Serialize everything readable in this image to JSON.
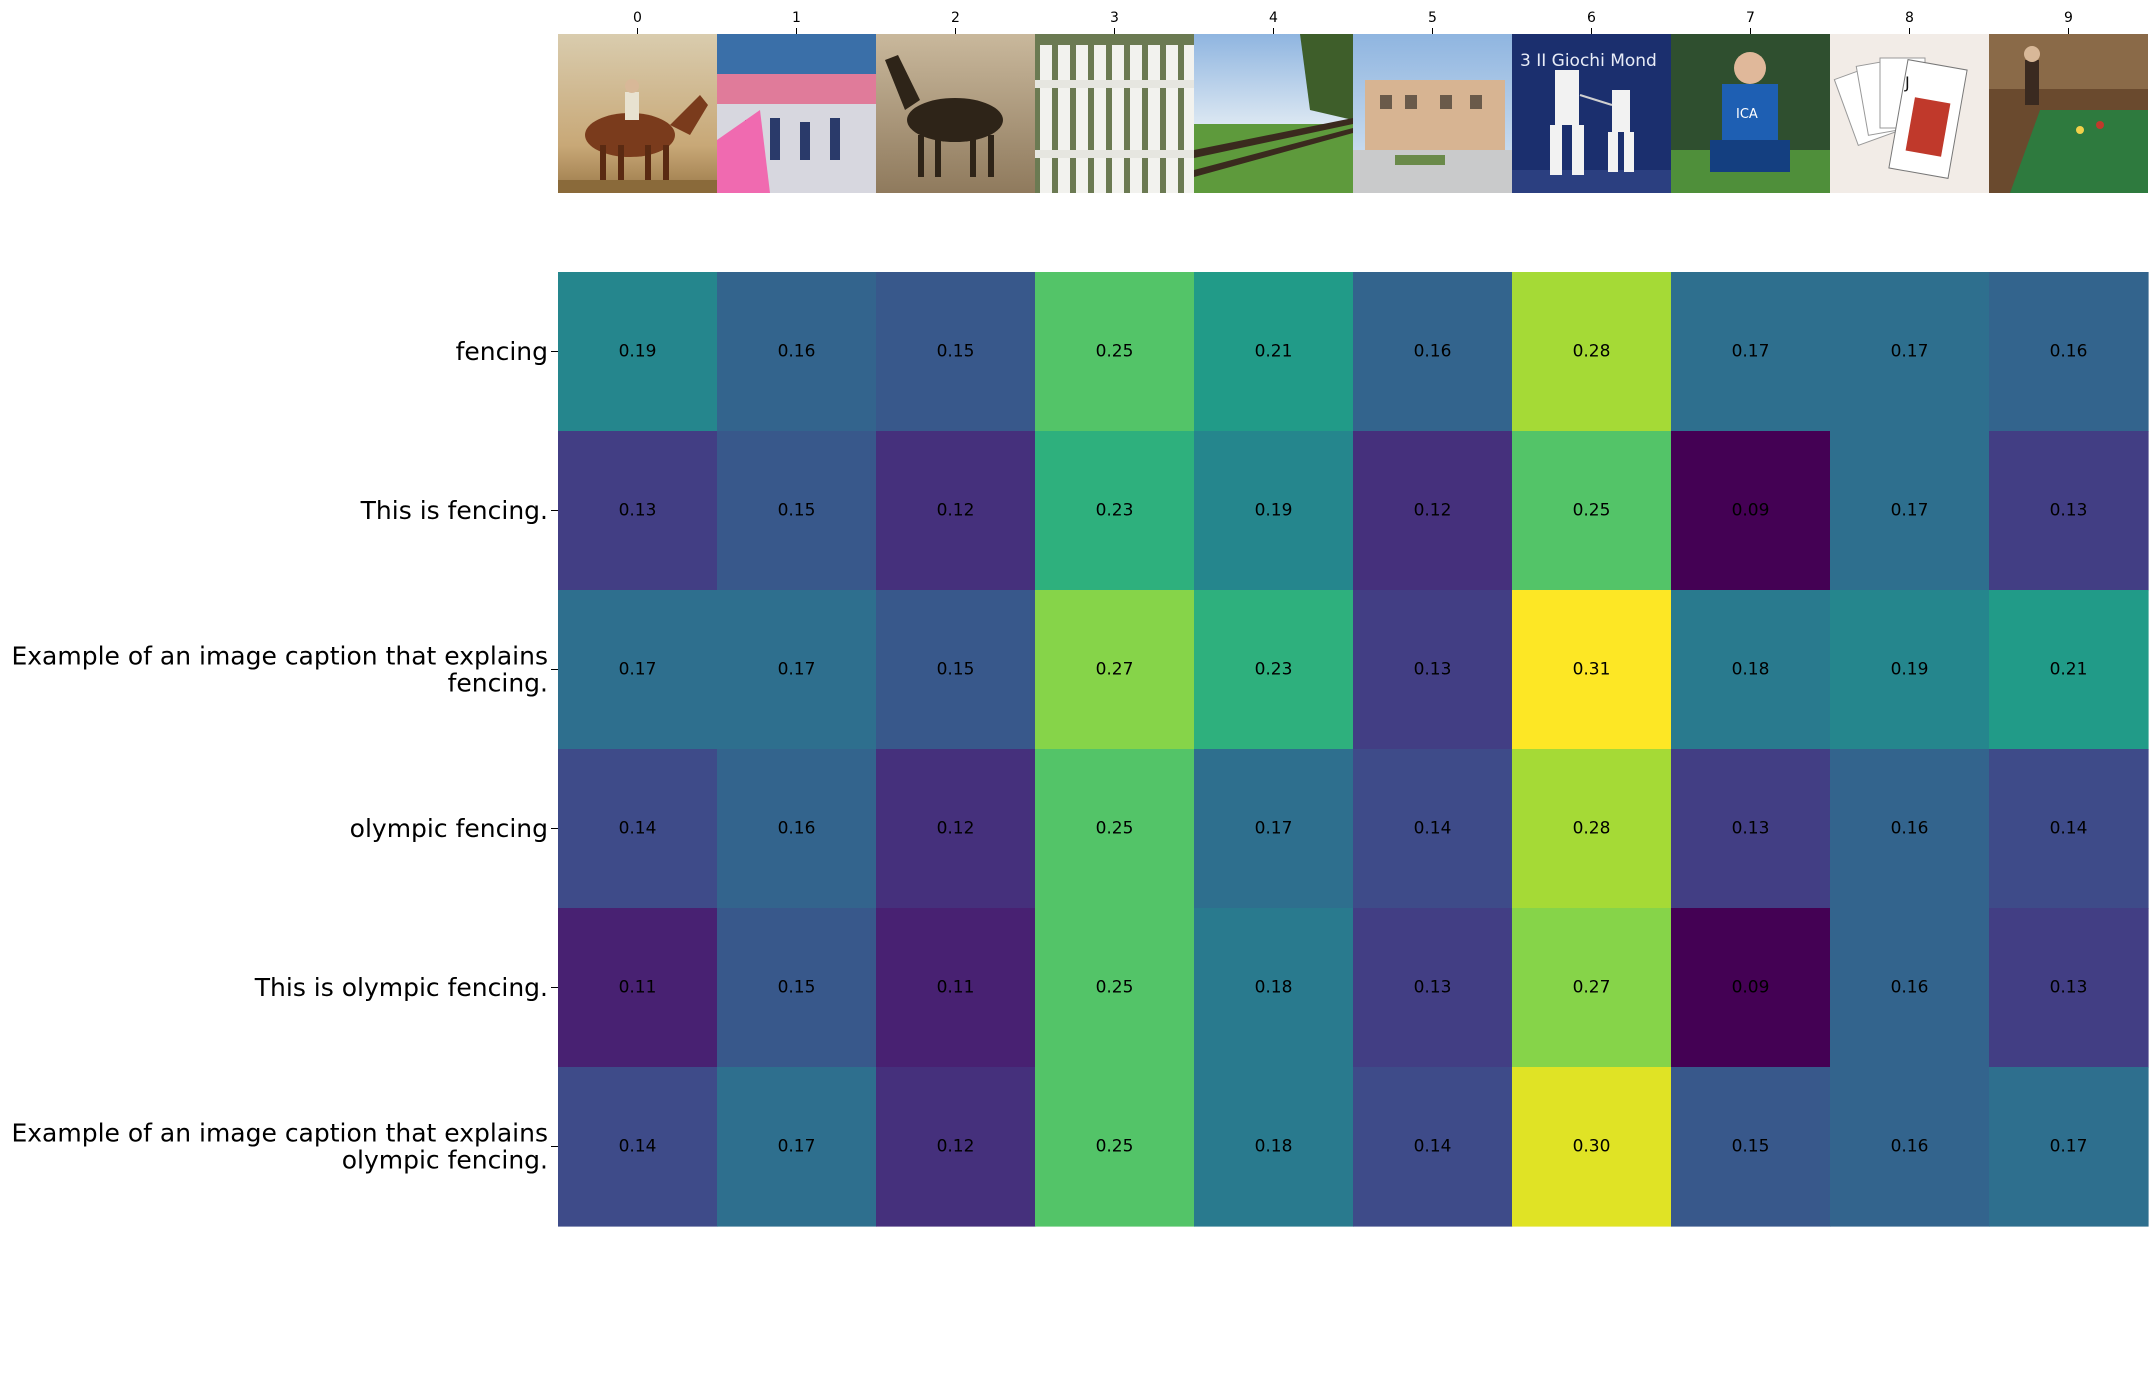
{
  "chart_data": {
    "type": "heatmap",
    "title": "",
    "xlabel": "",
    "ylabel": "",
    "colormap": "viridis",
    "value_range": [
      0.09,
      0.31
    ],
    "x_tick_labels": [
      "0",
      "1",
      "2",
      "3",
      "4",
      "5",
      "6",
      "7",
      "8",
      "9"
    ],
    "x_tick_position": "top",
    "y_tick_labels": [
      "fencing",
      "This is fencing.",
      "Example of an image caption that explains\nfencing.",
      "olympic fencing",
      "This is olympic fencing.",
      "Example of an image caption that explains\nolympic fencing."
    ],
    "values": [
      [
        0.19,
        0.16,
        0.15,
        0.25,
        0.21,
        0.16,
        0.28,
        0.17,
        0.17,
        0.16
      ],
      [
        0.13,
        0.15,
        0.12,
        0.23,
        0.19,
        0.12,
        0.25,
        0.09,
        0.17,
        0.13
      ],
      [
        0.17,
        0.17,
        0.15,
        0.27,
        0.23,
        0.13,
        0.31,
        0.18,
        0.19,
        0.21
      ],
      [
        0.14,
        0.16,
        0.12,
        0.25,
        0.17,
        0.14,
        0.28,
        0.13,
        0.16,
        0.14
      ],
      [
        0.11,
        0.15,
        0.11,
        0.25,
        0.18,
        0.13,
        0.27,
        0.09,
        0.16,
        0.13
      ],
      [
        0.14,
        0.17,
        0.12,
        0.25,
        0.18,
        0.14,
        0.3,
        0.15,
        0.16,
        0.17
      ]
    ],
    "value_format": "0.00",
    "grid": false,
    "image_thumbnails": [
      "jockey-on-horse-painting",
      "stadium-crowd-pink-flags",
      "horse-sepia-photo",
      "white-picket-fence",
      "wooden-fence-field",
      "building-courtyard",
      "fencing-match",
      "goalkeeper-kneeling",
      "playing-cards-hand",
      "billiards-table-room"
    ]
  }
}
